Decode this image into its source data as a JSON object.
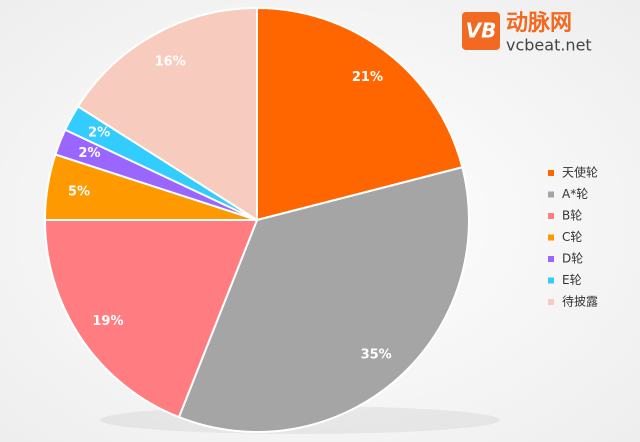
{
  "chart_data": {
    "type": "pie",
    "categories": [
      "天使轮",
      "A*轮",
      "B轮",
      "C轮",
      "D轮",
      "E轮",
      "待披露"
    ],
    "values": [
      21,
      35,
      19,
      5,
      2,
      2,
      16
    ],
    "value_labels": [
      "21%",
      "35%",
      "19%",
      "5%",
      "2%",
      "2%",
      "16%"
    ],
    "colors": [
      "#ff6600",
      "#a5a5a5",
      "#ff7c80",
      "#ff9900",
      "#9966ff",
      "#33ccff",
      "#f8cbbf"
    ],
    "legend": "right",
    "logo_mark": "VB",
    "logo_name": "动脉网",
    "logo_site": "vcbeat.net"
  }
}
